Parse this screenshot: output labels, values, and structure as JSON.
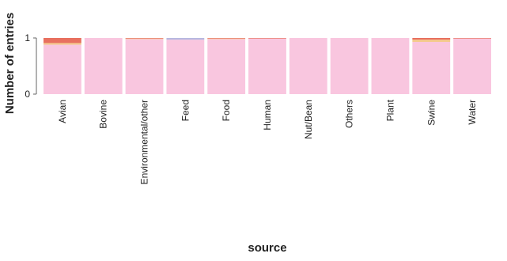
{
  "chart_data": {
    "type": "bar",
    "stacked": true,
    "title": "",
    "xlabel": "source",
    "ylabel": "Number of entries",
    "ylim": [
      0,
      1
    ],
    "yticks": [
      "0",
      "1"
    ],
    "grid": false,
    "categories": [
      "Avian",
      "Bovine",
      "Environmental/other",
      "Feed",
      "Food",
      "Human",
      "Nut/Bean",
      "Others",
      "Plant",
      "Swine",
      "Water"
    ],
    "series": [
      {
        "color": "#f9c6df",
        "values": [
          0.88,
          1.0,
          0.98,
          0.97,
          0.98,
          0.99,
          1.0,
          1.0,
          1.0,
          0.93,
          0.99
        ]
      },
      {
        "color": "#f4c98a",
        "values": [
          0.03,
          0.0,
          0.01,
          0.0,
          0.01,
          0.0,
          0.0,
          0.0,
          0.0,
          0.04,
          0.0
        ]
      },
      {
        "color": "#e8705f",
        "values": [
          0.09,
          0.0,
          0.01,
          0.0,
          0.01,
          0.01,
          0.0,
          0.0,
          0.0,
          0.03,
          0.01
        ]
      },
      {
        "color": "#b8b8e0",
        "values": [
          0.0,
          0.0,
          0.0,
          0.03,
          0.0,
          0.0,
          0.0,
          0.0,
          0.0,
          0.0,
          0.0
        ]
      }
    ]
  }
}
